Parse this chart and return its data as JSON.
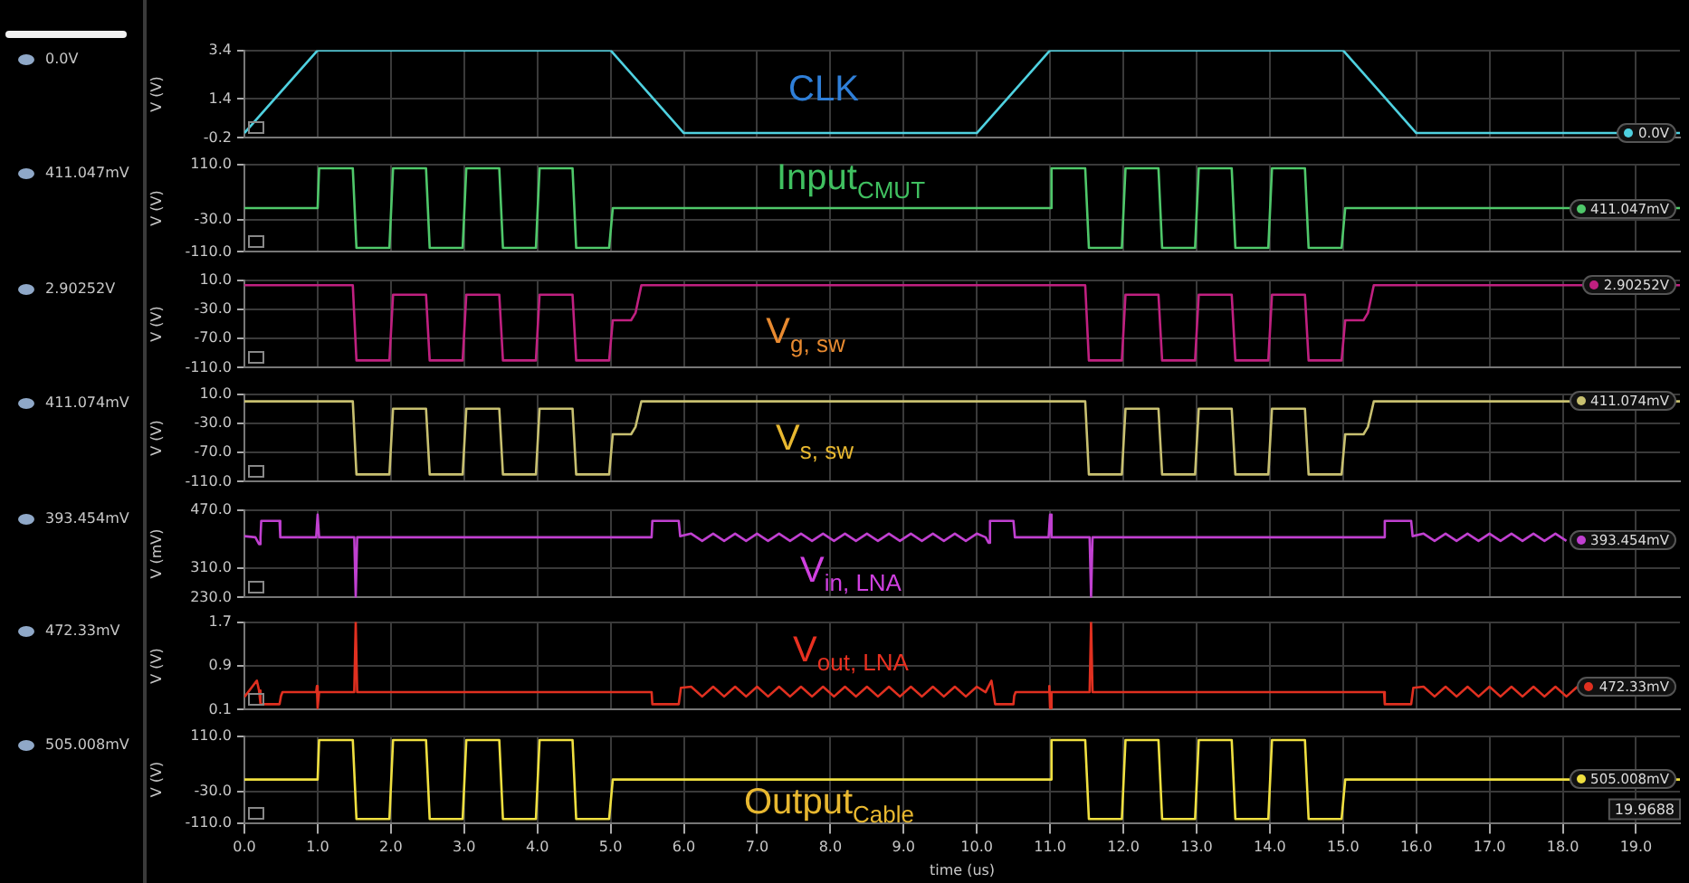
{
  "chart_data": [
    {
      "type": "line",
      "title": "CLK",
      "ylabel": "V (V)",
      "color": "#4fd1e0",
      "grid": true,
      "tick_labels": "y",
      "xlim": [
        0,
        19.6
      ],
      "xticks": [
        0,
        1,
        2,
        3,
        4,
        5,
        6,
        7,
        8,
        9,
        10,
        11,
        12,
        13,
        14,
        15,
        16,
        17,
        18,
        19
      ],
      "ylim": [
        -0.2,
        3.4
      ],
      "yticks": [
        -0.2,
        1.4,
        3.4
      ],
      "x": [
        0,
        1,
        5,
        6,
        10,
        11,
        15,
        16,
        19.6
      ],
      "values": [
        0,
        3.4,
        3.4,
        0,
        0,
        3.4,
        3.4,
        0,
        0
      ],
      "annotations": [
        "0.0V",
        "0.0V"
      ]
    },
    {
      "type": "line",
      "title": "Input$_{CMUT}$",
      "ylabel": "V (V)",
      "color": "#4fc86a",
      "grid": true,
      "tick_labels": "y",
      "xlim": [
        0,
        19.6
      ],
      "xticks": [
        0,
        1,
        2,
        3,
        4,
        5,
        6,
        7,
        8,
        9,
        10,
        11,
        12,
        13,
        14,
        15,
        16,
        17,
        18,
        19
      ],
      "ylim": [
        -110,
        110
      ],
      "yticks": [
        {
          "value": -110,
          "label": "-110.0"
        },
        {
          "value": -30,
          "label": "-30.0"
        },
        {
          "value": 110,
          "label": "110.0"
        }
      ],
      "x": [
        0,
        1.0,
        1.02,
        1.48,
        1.53,
        1.98,
        2.03,
        2.48,
        2.53,
        2.98,
        3.03,
        3.48,
        3.53,
        3.98,
        4.03,
        4.48,
        4.53,
        4.98,
        5.03,
        11.0,
        11.02,
        11.48,
        11.53,
        11.98,
        12.03,
        12.48,
        12.53,
        12.98,
        13.03,
        13.48,
        13.53,
        13.98,
        14.03,
        14.48,
        14.53,
        14.98,
        15.03,
        19.6
      ],
      "values": [
        0,
        0,
        100,
        100,
        -100,
        -100,
        100,
        100,
        -100,
        -100,
        100,
        100,
        -100,
        -100,
        100,
        100,
        -100,
        -100,
        0,
        0,
        100,
        100,
        -100,
        -100,
        100,
        100,
        -100,
        -100,
        100,
        100,
        -100,
        -100,
        100,
        100,
        -100,
        -100,
        0,
        0
      ],
      "annotations": [
        "411.047mV",
        "411.047mV"
      ]
    },
    {
      "type": "line",
      "title": "V$_{g, sw}$",
      "ylabel": "V (V)",
      "color": "#c02080",
      "grid": true,
      "tick_labels": "y",
      "xlim": [
        0,
        19.6
      ],
      "xticks": [
        0,
        1,
        2,
        3,
        4,
        5,
        6,
        7,
        8,
        9,
        10,
        11,
        12,
        13,
        14,
        15,
        16,
        17,
        18,
        19
      ],
      "ylim": [
        -110,
        10
      ],
      "yticks": [
        {
          "value": -110,
          "label": "-110.0"
        },
        {
          "value": -70,
          "label": "-70.0"
        },
        {
          "value": -30,
          "label": "-30.0"
        },
        {
          "value": 10,
          "label": "10.0"
        }
      ],
      "x": [
        0,
        1.48,
        1.53,
        1.98,
        2.03,
        2.48,
        2.53,
        2.98,
        3.03,
        3.48,
        3.53,
        3.98,
        4.03,
        4.48,
        4.53,
        4.98,
        5.03,
        5.28,
        5.34,
        5.42,
        11.48,
        11.53,
        11.98,
        12.03,
        12.48,
        12.53,
        12.98,
        13.03,
        13.48,
        13.53,
        13.98,
        14.03,
        14.48,
        14.53,
        14.98,
        15.03,
        15.28,
        15.34,
        15.42,
        19.6
      ],
      "values": [
        3,
        3,
        -100,
        -100,
        -10,
        -10,
        -100,
        -100,
        -10,
        -10,
        -100,
        -100,
        -10,
        -10,
        -100,
        -100,
        -45,
        -45,
        -35,
        3,
        3,
        -100,
        -100,
        -10,
        -10,
        -100,
        -100,
        -10,
        -10,
        -100,
        -100,
        -10,
        -10,
        -100,
        -100,
        -45,
        -45,
        -35,
        3,
        3
      ],
      "annotations": [
        "2.90252V",
        "2.90252V"
      ]
    },
    {
      "type": "line",
      "title": "V$_{s, sw}$",
      "ylabel": "V (V)",
      "color": "#c8c070",
      "grid": true,
      "tick_labels": "y",
      "xlim": [
        0,
        19.6
      ],
      "xticks": [
        0,
        1,
        2,
        3,
        4,
        5,
        6,
        7,
        8,
        9,
        10,
        11,
        12,
        13,
        14,
        15,
        16,
        17,
        18,
        19
      ],
      "ylim": [
        -110,
        10
      ],
      "yticks": [
        {
          "value": -110,
          "label": "-110.0"
        },
        {
          "value": -70,
          "label": "-70.0"
        },
        {
          "value": -30,
          "label": "-30.0"
        },
        {
          "value": 10,
          "label": "10.0"
        }
      ],
      "x": [
        0,
        1.48,
        1.53,
        1.98,
        2.03,
        2.48,
        2.53,
        2.98,
        3.03,
        3.48,
        3.53,
        3.98,
        4.03,
        4.48,
        4.53,
        4.98,
        5.03,
        5.28,
        5.34,
        5.42,
        11.48,
        11.53,
        11.98,
        12.03,
        12.48,
        12.53,
        12.98,
        13.03,
        13.48,
        13.53,
        13.98,
        14.03,
        14.48,
        14.53,
        14.98,
        15.03,
        15.28,
        15.34,
        15.42,
        19.6
      ],
      "values": [
        0,
        0,
        -100,
        -100,
        -10,
        -10,
        -100,
        -100,
        -10,
        -10,
        -100,
        -100,
        -10,
        -10,
        -100,
        -100,
        -45,
        -45,
        -35,
        0,
        0,
        -100,
        -100,
        -10,
        -10,
        -100,
        -100,
        -10,
        -10,
        -100,
        -100,
        -10,
        -10,
        -100,
        -100,
        -45,
        -45,
        -35,
        0,
        0
      ],
      "annotations": [
        "411.074mV",
        "411.074mV"
      ]
    },
    {
      "type": "line",
      "title": "V$_{in, LNA}$",
      "ylabel": "V (mV)",
      "color": "#c040d0",
      "grid": true,
      "tick_labels": "y",
      "xlim": [
        0,
        19.6
      ],
      "xticks": [
        0,
        1,
        2,
        3,
        4,
        5,
        6,
        7,
        8,
        9,
        10,
        11,
        12,
        13,
        14,
        15,
        16,
        17,
        18,
        19
      ],
      "ylim": [
        230,
        470
      ],
      "yticks": [
        {
          "value": 230,
          "label": "230.0"
        },
        {
          "value": 310,
          "label": "310.0"
        },
        {
          "value": 470,
          "label": "470.0"
        }
      ],
      "x": [
        0,
        0.15,
        0.2,
        0.22,
        0.23,
        0.48,
        0.49,
        0.98,
        1.0,
        1.02,
        1.5,
        1.52,
        1.54,
        5.56,
        5.57,
        5.93,
        5.95,
        6.1,
        6.25,
        6.4,
        6.55,
        6.7,
        6.85,
        7.0,
        7.15,
        7.3,
        7.45,
        7.6,
        7.75,
        7.9,
        8.05,
        8.2,
        8.35,
        8.5,
        8.65,
        8.8,
        8.95,
        9.1,
        9.25,
        9.4,
        9.55,
        9.7,
        9.85,
        10.0,
        10.12,
        10.16,
        10.18,
        10.5,
        10.52,
        10.98,
        11.0,
        11.02,
        11.54,
        11.56,
        11.58,
        15.56,
        15.57,
        15.93,
        15.95,
        16.1,
        16.25,
        16.4,
        16.55,
        16.7,
        16.85,
        17.0,
        17.15,
        17.3,
        17.45,
        17.6,
        17.75,
        17.9,
        18.05
      ],
      "values": [
        398,
        395,
        376,
        395,
        440,
        440,
        395,
        395,
        457,
        395,
        395,
        230,
        395,
        395,
        440,
        440,
        398,
        405,
        385,
        405,
        385,
        405,
        385,
        405,
        385,
        405,
        385,
        405,
        385,
        405,
        385,
        405,
        385,
        405,
        385,
        405,
        385,
        405,
        385,
        405,
        385,
        405,
        385,
        405,
        395,
        380,
        440,
        440,
        395,
        395,
        457,
        395,
        395,
        230,
        395,
        395,
        440,
        440,
        398,
        405,
        385,
        405,
        385,
        405,
        385,
        405,
        385,
        405,
        385,
        405,
        385,
        405,
        385
      ],
      "annotations": [
        "393.454mV",
        "393.454mV"
      ]
    },
    {
      "type": "line",
      "title": "V$_{out, LNA}$",
      "ylabel": "V (V)",
      "color": "#e03020",
      "grid": true,
      "tick_labels": "y",
      "xlim": [
        0,
        19.6
      ],
      "xticks": [
        0,
        1,
        2,
        3,
        4,
        5,
        6,
        7,
        8,
        9,
        10,
        11,
        12,
        13,
        14,
        15,
        16,
        17,
        18,
        19
      ],
      "ylim": [
        0.1,
        1.7
      ],
      "yticks": [
        0.1,
        0.9,
        1.7
      ],
      "x": [
        0,
        0.17,
        0.2,
        0.22,
        0.48,
        0.5,
        0.52,
        0.98,
        0.99,
        1.0,
        1.02,
        1.5,
        1.52,
        1.54,
        5.56,
        5.57,
        5.93,
        5.96,
        6.1,
        6.25,
        6.4,
        6.55,
        6.7,
        6.85,
        7.0,
        7.15,
        7.3,
        7.45,
        7.6,
        7.75,
        7.9,
        8.05,
        8.2,
        8.35,
        8.5,
        8.65,
        8.8,
        8.95,
        9.1,
        9.25,
        9.4,
        9.55,
        9.7,
        9.85,
        10.0,
        10.12,
        10.2,
        10.25,
        10.5,
        10.51,
        10.53,
        10.98,
        10.99,
        11.0,
        11.02,
        11.54,
        11.56,
        11.58,
        15.56,
        15.57,
        15.93,
        15.96,
        16.1,
        16.25,
        16.4,
        16.55,
        16.7,
        16.85,
        17.0,
        17.15,
        17.3,
        17.45,
        17.6,
        17.75,
        17.9,
        18.05,
        18.2
      ],
      "values": [
        0.33,
        0.63,
        0.45,
        0.2,
        0.2,
        0.35,
        0.42,
        0.42,
        0.53,
        0.13,
        0.42,
        0.42,
        1.7,
        0.42,
        0.42,
        0.2,
        0.2,
        0.5,
        0.52,
        0.34,
        0.52,
        0.34,
        0.52,
        0.34,
        0.52,
        0.34,
        0.52,
        0.34,
        0.52,
        0.34,
        0.52,
        0.34,
        0.52,
        0.34,
        0.52,
        0.34,
        0.52,
        0.34,
        0.52,
        0.34,
        0.52,
        0.34,
        0.52,
        0.34,
        0.52,
        0.42,
        0.63,
        0.2,
        0.2,
        0.35,
        0.42,
        0.42,
        0.53,
        0.13,
        0.42,
        0.42,
        1.7,
        0.42,
        0.42,
        0.2,
        0.2,
        0.5,
        0.52,
        0.34,
        0.52,
        0.34,
        0.52,
        0.34,
        0.52,
        0.34,
        0.52,
        0.34,
        0.52,
        0.34,
        0.52,
        0.34,
        0.52
      ],
      "annotations": [
        "472.33mV",
        "472.33mV"
      ]
    },
    {
      "type": "line",
      "title": "Output$_{Cable}$",
      "ylabel": "V (V)",
      "xlabel": "time (us)",
      "color": "#f0e040",
      "grid": true,
      "xlim": [
        0,
        19.6
      ],
      "xticks": [
        {
          "value": 0,
          "label": "0.0"
        },
        {
          "value": 1,
          "label": "1.0"
        },
        {
          "value": 2,
          "label": "2.0"
        },
        {
          "value": 3,
          "label": "3.0"
        },
        {
          "value": 4,
          "label": "4.0"
        },
        {
          "value": 5,
          "label": "5.0"
        },
        {
          "value": 6,
          "label": "6.0"
        },
        {
          "value": 7,
          "label": "7.0"
        },
        {
          "value": 8,
          "label": "8.0"
        },
        {
          "value": 9,
          "label": "9.0"
        },
        {
          "value": 10,
          "label": "10.0"
        },
        {
          "value": 11,
          "label": "11.0"
        },
        {
          "value": 12,
          "label": "12.0"
        },
        {
          "value": 13,
          "label": "13.0"
        },
        {
          "value": 14,
          "label": "14.0"
        },
        {
          "value": 15,
          "label": "15.0"
        },
        {
          "value": 16,
          "label": "16.0"
        },
        {
          "value": 17,
          "label": "17.0"
        },
        {
          "value": 18,
          "label": "18.0"
        },
        {
          "value": 19,
          "label": "19.0"
        }
      ],
      "ylim": [
        -110,
        110
      ],
      "yticks": [
        {
          "value": -110,
          "label": "-110.0"
        },
        {
          "value": -30,
          "label": "-30.0"
        },
        {
          "value": 110,
          "label": "110.0"
        }
      ],
      "x": [
        0,
        1.0,
        1.02,
        1.48,
        1.53,
        1.98,
        2.03,
        2.48,
        2.53,
        2.98,
        3.03,
        3.48,
        3.53,
        3.98,
        4.03,
        4.48,
        4.53,
        4.98,
        5.03,
        11.0,
        11.02,
        11.48,
        11.53,
        11.98,
        12.03,
        12.48,
        12.53,
        12.98,
        13.03,
        13.48,
        13.53,
        13.98,
        14.03,
        14.48,
        14.53,
        14.98,
        15.03,
        19.6
      ],
      "values": [
        0,
        0,
        100,
        100,
        -100,
        -100,
        100,
        100,
        -100,
        -100,
        100,
        100,
        -100,
        -100,
        100,
        100,
        -100,
        -100,
        0,
        0,
        100,
        100,
        -100,
        -100,
        100,
        100,
        -100,
        -100,
        100,
        100,
        -100,
        -100,
        100,
        100,
        -100,
        -100,
        0,
        0
      ],
      "annotations": [
        "505.008mV",
        "505.008mV",
        "19.9688"
      ]
    }
  ]
}
